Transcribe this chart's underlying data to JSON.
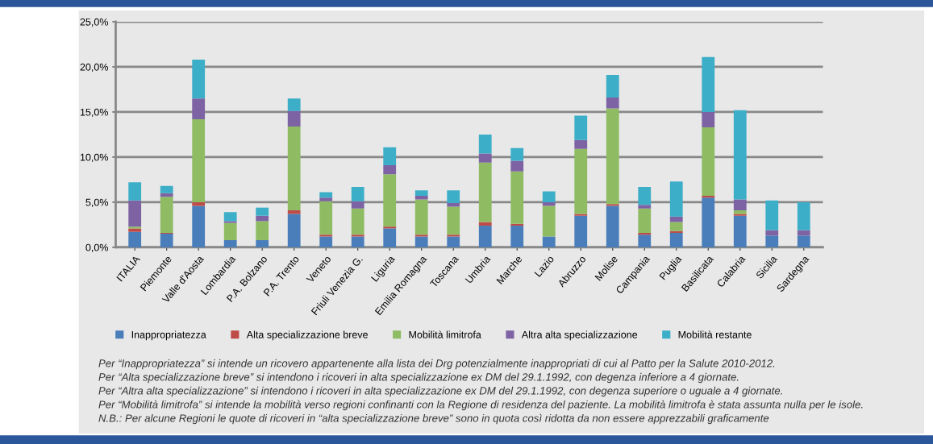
{
  "chart_data": {
    "type": "bar",
    "stacked": true,
    "grid": "y",
    "legend": "bottom",
    "categories": [
      "ITALIA",
      "Piemonte",
      "Valle d'Aosta",
      "Lombardia",
      "P.A. Bolzano",
      "P.A. Trento",
      "Veneto",
      "Friuli Venezia G.",
      "Liguria",
      "Emilia Romagna",
      "Toscana",
      "Umbria",
      "Marche",
      "Lazio",
      "Abruzzo",
      "Molise",
      "Campania",
      "Puglia",
      "Basilicata",
      "Calabria",
      "Sicilia",
      "Sardegna"
    ],
    "ylim": [
      0,
      25
    ],
    "yticks": [
      {
        "value": 0,
        "label": "0,0%"
      },
      {
        "value": 5,
        "label": "5,0%"
      },
      {
        "value": 10,
        "label": "10,0%"
      },
      {
        "value": 15,
        "label": "15,0%"
      },
      {
        "value": 20,
        "label": "20,0%"
      },
      {
        "value": 25,
        "label": "25,0%"
      }
    ],
    "series": [
      {
        "name": "Inappropriatezza",
        "color": "#4a7ebb",
        "values": [
          1.7,
          1.5,
          4.6,
          0.8,
          0.8,
          3.7,
          1.2,
          1.2,
          2.1,
          1.2,
          1.2,
          2.4,
          2.4,
          1.2,
          3.5,
          4.6,
          1.4,
          1.6,
          5.5,
          3.5,
          1.3,
          1.3
        ]
      },
      {
        "name": "Alta specializzazione breve",
        "color": "#be4b48",
        "values": [
          0.4,
          0.1,
          0.4,
          0,
          0,
          0.4,
          0.2,
          0.2,
          0.2,
          0.2,
          0.2,
          0.4,
          0.2,
          0,
          0.2,
          0.2,
          0.2,
          0.2,
          0.2,
          0.2,
          0,
          0
        ]
      },
      {
        "name": "Mobilità limitrofa",
        "color": "#8fbc63",
        "values": [
          0.2,
          4.0,
          9.2,
          1.9,
          2.1,
          9.3,
          3.7,
          2.9,
          5.8,
          3.9,
          3.1,
          6.6,
          5.8,
          3.4,
          7.2,
          10.6,
          2.7,
          1.0,
          7.6,
          0.4,
          0,
          0
        ]
      },
      {
        "name": "Altra alta specializzazione",
        "color": "#7e63a4",
        "values": [
          2.9,
          0.4,
          2.3,
          0.2,
          0.6,
          1.7,
          0.4,
          0.8,
          1.0,
          0.4,
          0.4,
          1.0,
          1.2,
          0.4,
          1.0,
          1.2,
          0.4,
          0.6,
          1.7,
          1.2,
          0.6,
          0.6
        ]
      },
      {
        "name": "Mobilità restante",
        "color": "#3caec8",
        "values": [
          2.0,
          0.8,
          4.3,
          1.0,
          0.9,
          1.4,
          0.6,
          1.6,
          2.0,
          0.6,
          1.4,
          2.1,
          1.4,
          1.2,
          2.7,
          2.5,
          2.0,
          3.9,
          6.1,
          9.9,
          3.3,
          3.1
        ]
      }
    ],
    "annotations": [
      "Per “Inappropriatezza” si intende un ricovero appartenente alla lista dei Drg potenzialmente inappropriati di cui al Patto per la Salute 2010-2012.",
      "Per “Alta specializzazione breve” si intendono i ricoveri in alta specializzazione ex DM del 29.1.1992, con degenza inferiore a 4 giornate.",
      "Per “Altra alta specializzazione” si intendono i ricoveri in alta specializzazione ex DM del 29.1.1992, con degenza superiore o uguale a 4 giornate.",
      "Per “Mobilità limitrofa” si intende la mobilità verso regioni confinanti con la Regione di residenza del paziente. La mobilità limitrofa è stata assunta nulla per le isole.",
      "N.B.: Per alcune Regioni le quote di ricoveri in “alta specializzazione breve” sono in quota così ridotta da non essere apprezzabili graficamente"
    ]
  }
}
